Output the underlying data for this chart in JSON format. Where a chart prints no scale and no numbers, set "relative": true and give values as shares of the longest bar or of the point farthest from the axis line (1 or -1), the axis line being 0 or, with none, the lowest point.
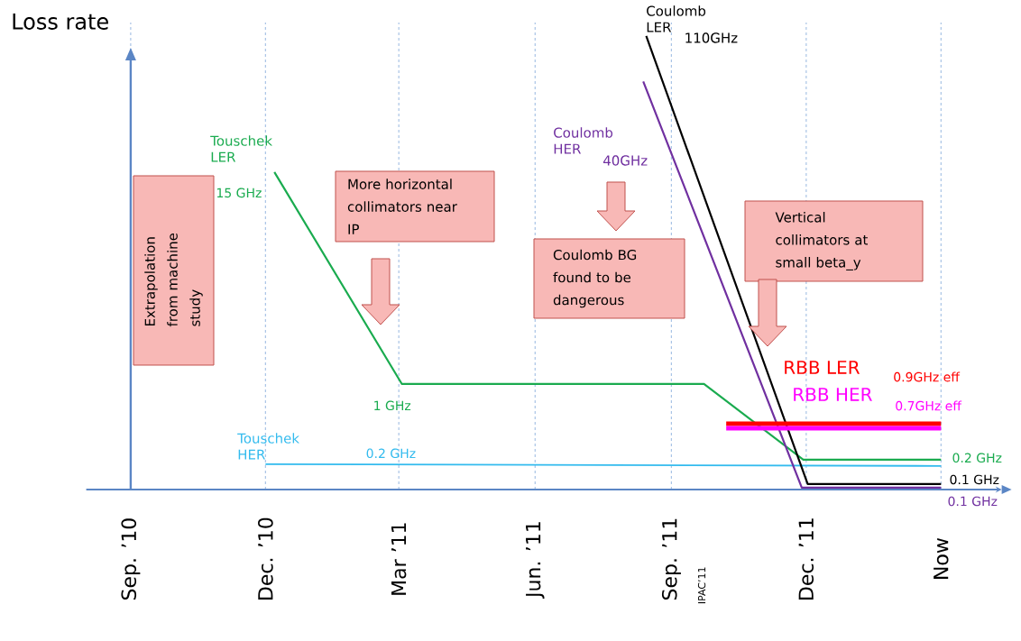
{
  "chart_data": {
    "type": "line",
    "relative": true,
    "ylabel": "Loss rate",
    "grid": "x",
    "xlim": [
      "2010-08-02",
      "2012-04-11"
    ],
    "xticks": [
      {
        "value": "2010-09-01",
        "label": "Sep. ’10"
      },
      {
        "value": "2010-12-01",
        "label": "Dec. ’10"
      },
      {
        "value": "2011-03-01",
        "label": "Mar ’11"
      },
      {
        "value": "2011-06-01",
        "label": "Jun. ’11"
      },
      {
        "value": "2011-09-01",
        "label": "Sep. ’11"
      },
      {
        "value": "2011-12-01",
        "label": "Dec. ’11"
      },
      {
        "value": "2012-03-01",
        "label": "Now"
      }
    ],
    "series": [
      {
        "name": "Touschek LER",
        "color": "#1aab4f",
        "x": [
          "2010-12-07",
          "2011-03-03",
          "2011-09-23",
          "2011-11-29",
          "2012-03-01"
        ],
        "values": [
          0.7,
          0.233,
          0.233,
          0.066,
          0.066
        ]
      },
      {
        "name": "Touschek HER",
        "color": "#33bbee",
        "x": [
          "2010-12-01",
          "2012-03-01"
        ],
        "values": [
          0.056,
          0.052
        ]
      },
      {
        "name": "Coulomb LER",
        "color": "#000000",
        "x": [
          "2011-08-15",
          "2011-12-02",
          "2012-03-01"
        ],
        "values": [
          1.0,
          0.012,
          0.012
        ]
      },
      {
        "name": "Coulomb HER",
        "color": "#7030a0",
        "x": [
          "2011-08-13",
          "2011-11-28",
          "2012-03-01"
        ],
        "values": [
          0.9,
          0.004,
          0.004
        ]
      },
      {
        "name": "RBB LER",
        "color": "#ff0000",
        "x": [
          "2011-10-08",
          "2012-03-01"
        ],
        "values": [
          0.145,
          0.145
        ]
      },
      {
        "name": "RBB HER",
        "color": "#ff00ff",
        "x": [
          "2011-10-08",
          "2012-03-01"
        ],
        "values": [
          0.135,
          0.135
        ]
      }
    ],
    "annotations": [
      {
        "text": "15 GHz",
        "x": "2010-12-07",
        "y": 0.7
      },
      {
        "text": "1 GHz",
        "x": "2011-03-03",
        "y": 0.233
      },
      {
        "text": "0.2 GHz",
        "x": "2011-03-03",
        "y": 0.056
      },
      "40GHz",
      {
        "text": "110GHz",
        "x": "2011-08-15",
        "y": 1.0
      },
      "0.9GHz eff",
      "0.7GHz eff",
      {
        "text": "0.2 GHz",
        "x": "2012-03-01",
        "y": 0.066
      },
      {
        "text": "0.1 GHz",
        "x": "2012-03-01",
        "y": 0.012
      },
      {
        "text": "0.1 GHz",
        "x": "2012-03-01",
        "y": 0.004
      },
      "Extrapolation from machine study",
      "More horizontal collimators near IP",
      "Coulomb BG found to be dangerous",
      "Vertical collimators at small beta_y",
      "IPAC’11"
    ]
  }
}
